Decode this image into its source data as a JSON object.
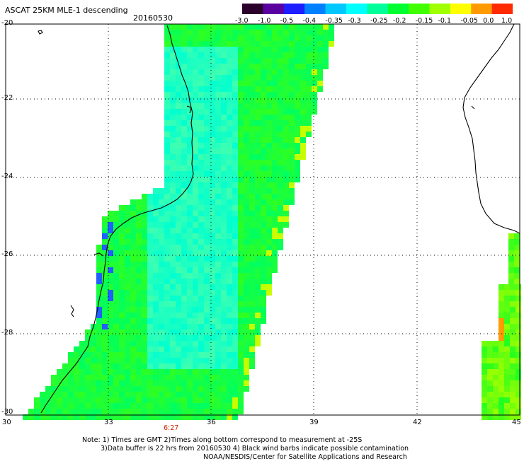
{
  "header": {
    "title": "ASCAT 25KM MLE-1 descending",
    "date": "20160530"
  },
  "colorbar": {
    "labels": [
      "-3.0",
      "-1.0",
      "-0.5",
      "-0.4",
      "-0.35",
      "-0.3",
      "-0.25",
      "-0.2",
      "-0.15",
      "-0.1",
      "-0.05",
      "0.0",
      "1.0"
    ],
    "colors": [
      "#2a002a",
      "#5a00a0",
      "#1d1dff",
      "#007fff",
      "#00c8ff",
      "#00ffff",
      "#00ff9a",
      "#00ff30",
      "#40ff00",
      "#a0ff00",
      "#ffff00",
      "#ff9a00",
      "#ff2a00"
    ]
  },
  "map": {
    "lat_labels": [
      "-20",
      "-22",
      "-24",
      "-26",
      "-28",
      "-30"
    ],
    "lon_labels": [
      "30",
      "33",
      "36",
      "39",
      "42",
      "45"
    ],
    "time_label": "6:27",
    "grid": "dotted"
  },
  "notes": {
    "line1": "Note: 1) Times are GMT 2)Times along bottom correspond to measurement at -25S",
    "line2": "3)Data buffer is 22 hrs from 20160530 4) Black wind barbs indicate possible contamination",
    "line3": "NOAA/NESDIS/Center for Satellite Applications and Research"
  }
}
